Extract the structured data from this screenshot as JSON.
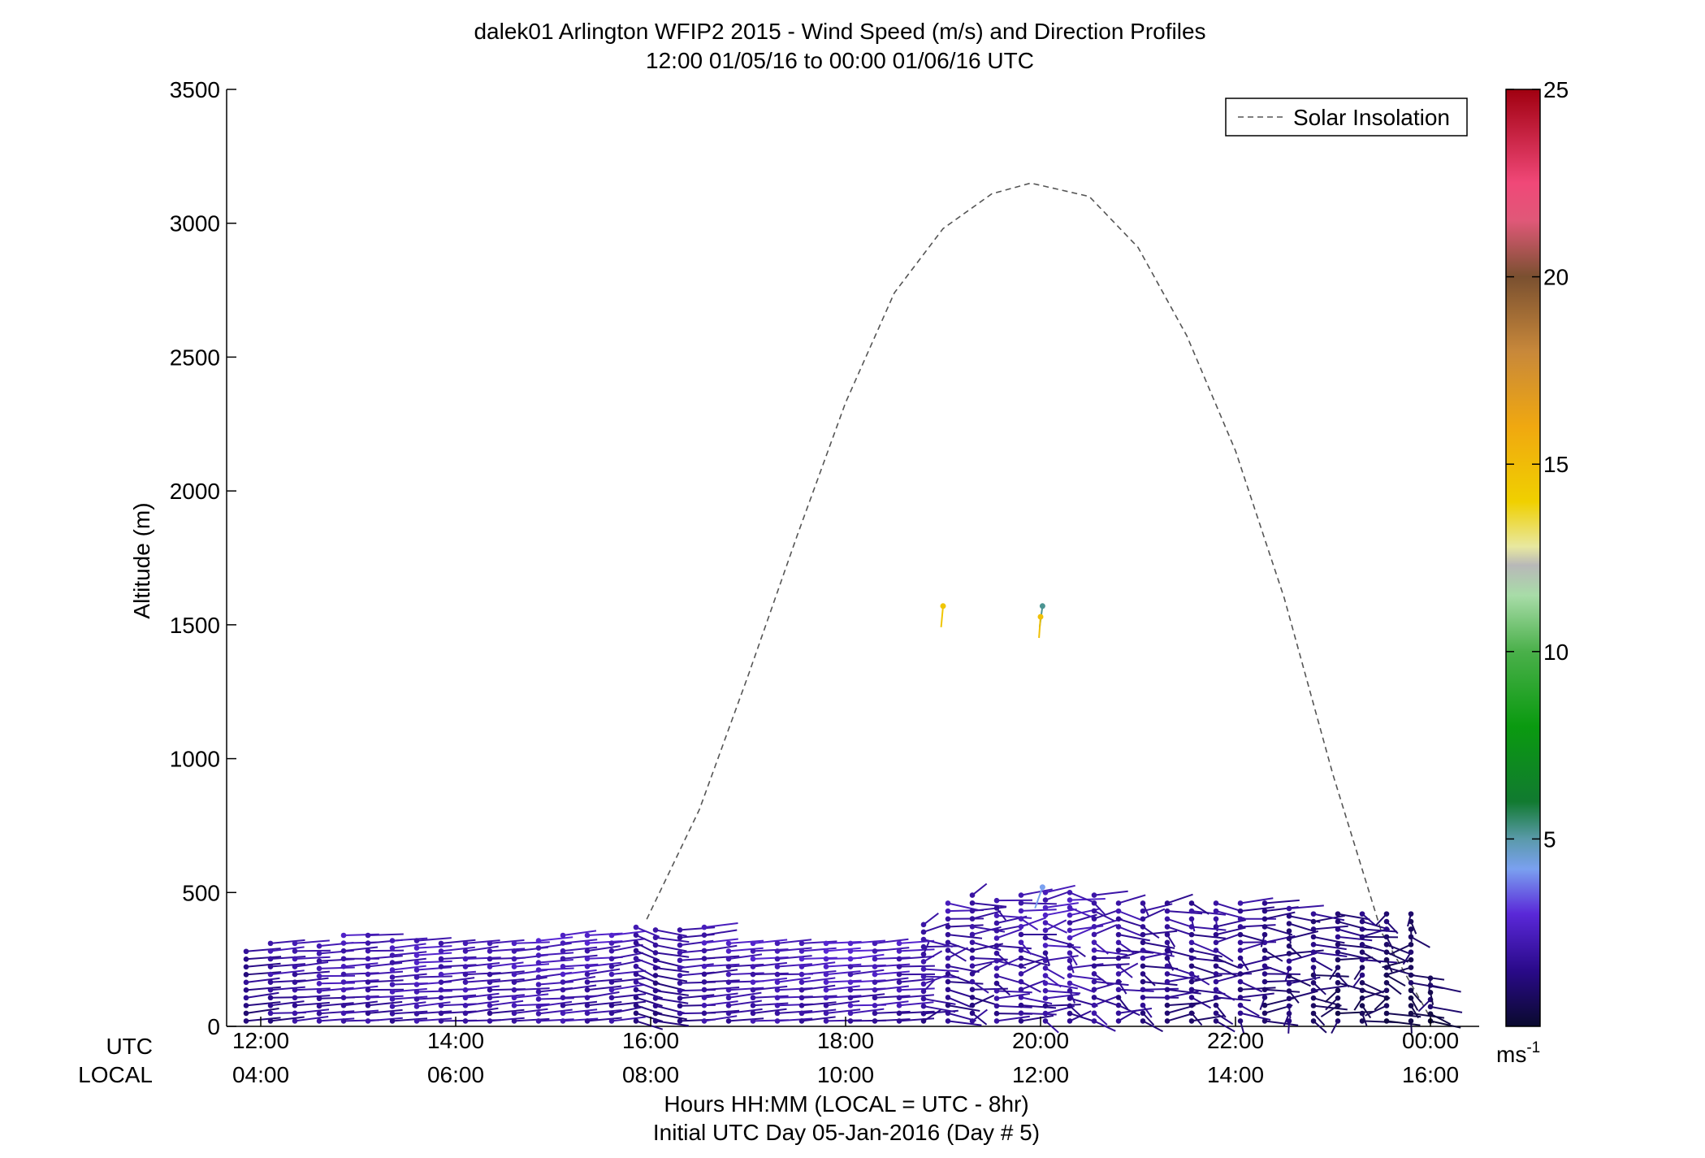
{
  "chart_data": {
    "type": "scatter",
    "title": "dalek01 Arlington WFIP2 2015 - Wind Speed (m/s) and Direction Profiles",
    "subtitle": "12:00 01/05/16 to 00:00 01/06/16  UTC",
    "ylabel": "Altitude (m)",
    "xlabel": "Hours HH:MM  (LOCAL = UTC - 8hr)",
    "xlabel2": "Initial UTC Day 05-Jan-2016 (Day # 5)",
    "row_labels": {
      "utc": "UTC",
      "local": "LOCAL"
    },
    "ylim": [
      0,
      3500
    ],
    "xlim_hours_utc": [
      11.65,
      24.5
    ],
    "yticks": [
      0,
      500,
      1000,
      1500,
      2000,
      2500,
      3000,
      3500
    ],
    "xticks_utc_hours": [
      12,
      14,
      16,
      18,
      20,
      22,
      24
    ],
    "xtick_labels_utc": [
      "12:00",
      "14:00",
      "16:00",
      "18:00",
      "20:00",
      "22:00",
      "00:00"
    ],
    "xtick_labels_local": [
      "04:00",
      "06:00",
      "08:00",
      "10:00",
      "12:00",
      "14:00",
      "16:00"
    ],
    "legend": {
      "entries": [
        "Solar Insolation"
      ],
      "placement": "top-right",
      "line_style": "dashed",
      "line_color": "#555555"
    },
    "grid": false,
    "colorbar": {
      "range": [
        0,
        25
      ],
      "ticks": [
        5,
        10,
        15,
        20,
        25
      ],
      "unit_label": "ms",
      "unit_exponent": "-1",
      "stops": [
        {
          "v": 0,
          "c": "#0a0a2e"
        },
        {
          "v": 1.5,
          "c": "#2a0a8a"
        },
        {
          "v": 3,
          "c": "#5a28d8"
        },
        {
          "v": 4.2,
          "c": "#7aa0f0"
        },
        {
          "v": 5,
          "c": "#5a9aaa"
        },
        {
          "v": 6,
          "c": "#117a30"
        },
        {
          "v": 8,
          "c": "#0a9a10"
        },
        {
          "v": 10,
          "c": "#4ab04a"
        },
        {
          "v": 11.5,
          "c": "#a8dca8"
        },
        {
          "v": 12.3,
          "c": "#b8b8b8"
        },
        {
          "v": 12.8,
          "c": "#e8e8a0"
        },
        {
          "v": 14,
          "c": "#f0d000"
        },
        {
          "v": 16,
          "c": "#f0a810"
        },
        {
          "v": 18,
          "c": "#c8883a"
        },
        {
          "v": 20,
          "c": "#7a5030"
        },
        {
          "v": 21.5,
          "c": "#e05878"
        },
        {
          "v": 22.5,
          "c": "#f04878"
        },
        {
          "v": 25,
          "c": "#a00010"
        }
      ]
    },
    "solar_insolation": {
      "description_units": "altitude-axis units",
      "x_hours_utc": [
        15.96,
        16.5,
        17.0,
        17.5,
        18.0,
        18.5,
        19.0,
        19.5,
        19.9,
        20.5,
        21.0,
        21.5,
        22.0,
        22.5,
        23.0,
        23.5,
        24.05
      ],
      "y": [
        400,
        810,
        1310,
        1830,
        2330,
        2740,
        2980,
        3110,
        3150,
        3100,
        2910,
        2580,
        2150,
        1600,
        940,
        350,
        0
      ]
    },
    "wind_profiles": {
      "note": "Wind barbs at each profile time (UTC hours) and range gate altitude (m); color = speed (m/s)",
      "profiles": [
        {
          "t": 11.85,
          "top": 280,
          "spd": 1.2,
          "dir": 255
        },
        {
          "t": 12.1,
          "top": 310,
          "spd": 1.6,
          "dir": 258
        },
        {
          "t": 12.35,
          "top": 310,
          "spd": 1.7,
          "dir": 258
        },
        {
          "t": 12.6,
          "top": 300,
          "spd": 1.8,
          "dir": 260
        },
        {
          "t": 12.85,
          "top": 340,
          "spd": 1.8,
          "dir": 262
        },
        {
          "t": 13.1,
          "top": 340,
          "spd": 1.9,
          "dir": 262
        },
        {
          "t": 13.35,
          "top": 320,
          "spd": 1.9,
          "dir": 260
        },
        {
          "t": 13.6,
          "top": 320,
          "spd": 1.9,
          "dir": 258
        },
        {
          "t": 13.85,
          "top": 310,
          "spd": 1.8,
          "dir": 258
        },
        {
          "t": 14.1,
          "top": 310,
          "spd": 1.9,
          "dir": 256
        },
        {
          "t": 14.35,
          "top": 310,
          "spd": 1.9,
          "dir": 258
        },
        {
          "t": 14.6,
          "top": 310,
          "spd": 1.9,
          "dir": 256
        },
        {
          "t": 14.85,
          "top": 320,
          "spd": 2.0,
          "dir": 256
        },
        {
          "t": 15.1,
          "top": 340,
          "spd": 2.0,
          "dir": 254
        },
        {
          "t": 15.35,
          "top": 340,
          "spd": 1.9,
          "dir": 254
        },
        {
          "t": 15.6,
          "top": 340,
          "spd": 1.8,
          "dir": 250
        },
        {
          "t": 15.85,
          "top": 370,
          "spd": 1.4,
          "dir": 320
        },
        {
          "t": 16.05,
          "top": 360,
          "spd": 1.3,
          "dir": 300
        },
        {
          "t": 16.3,
          "top": 360,
          "spd": 1.6,
          "dir": 258
        },
        {
          "t": 16.55,
          "top": 370,
          "spd": 1.8,
          "dir": 256
        },
        {
          "t": 16.8,
          "top": 310,
          "spd": 1.9,
          "dir": 256
        },
        {
          "t": 17.05,
          "top": 310,
          "spd": 2.0,
          "dir": 256
        },
        {
          "t": 17.3,
          "top": 310,
          "spd": 2.0,
          "dir": 258
        },
        {
          "t": 17.55,
          "top": 310,
          "spd": 2.0,
          "dir": 258
        },
        {
          "t": 17.8,
          "top": 310,
          "spd": 2.1,
          "dir": 258
        },
        {
          "t": 18.05,
          "top": 310,
          "spd": 2.1,
          "dir": 258
        },
        {
          "t": 18.3,
          "top": 310,
          "spd": 2.0,
          "dir": 258
        },
        {
          "t": 18.55,
          "top": 310,
          "spd": 1.9,
          "dir": 260
        },
        {
          "t": 18.8,
          "top": 380,
          "spd": 1.6,
          "dir": 255
        },
        {
          "t": 19.05,
          "top": 460,
          "spd": 1.5,
          "dir": 270
        },
        {
          "t": 19.3,
          "top": 490,
          "spd": 1.6,
          "dir": 270
        },
        {
          "t": 19.55,
          "top": 470,
          "spd": 1.6,
          "dir": 280
        },
        {
          "t": 19.8,
          "top": 490,
          "spd": 1.7,
          "dir": 280
        },
        {
          "t": 20.05,
          "top": 500,
          "spd": 1.8,
          "dir": 285
        },
        {
          "t": 20.3,
          "top": 500,
          "spd": 1.8,
          "dir": 285
        },
        {
          "t": 20.55,
          "top": 490,
          "spd": 1.7,
          "dir": 280
        },
        {
          "t": 20.8,
          "top": 460,
          "spd": 1.5,
          "dir": 280
        },
        {
          "t": 21.05,
          "top": 460,
          "spd": 1.4,
          "dir": 285
        },
        {
          "t": 21.3,
          "top": 460,
          "spd": 1.3,
          "dir": 285
        },
        {
          "t": 21.55,
          "top": 460,
          "spd": 1.3,
          "dir": 290
        },
        {
          "t": 21.8,
          "top": 460,
          "spd": 1.3,
          "dir": 290
        },
        {
          "t": 22.05,
          "top": 460,
          "spd": 1.2,
          "dir": 295
        },
        {
          "t": 22.3,
          "top": 460,
          "spd": 1.1,
          "dir": 300
        },
        {
          "t": 22.55,
          "top": 440,
          "spd": 1.0,
          "dir": 300
        },
        {
          "t": 22.8,
          "top": 420,
          "spd": 0.9,
          "dir": 310
        },
        {
          "t": 23.05,
          "top": 420,
          "spd": 0.8,
          "dir": 320
        },
        {
          "t": 23.3,
          "top": 420,
          "spd": 0.7,
          "dir": 330
        },
        {
          "t": 23.55,
          "top": 420,
          "spd": 0.6,
          "dir": 340
        },
        {
          "t": 23.8,
          "top": 420,
          "spd": 0.5,
          "dir": 345
        },
        {
          "t": 24.0,
          "top": 180,
          "spd": 0.5,
          "dir": 350
        }
      ],
      "isolated_points": [
        {
          "t": 19.0,
          "alt": 1570,
          "spd": 14.5,
          "dir": 195
        },
        {
          "t": 20.02,
          "alt": 1570,
          "spd": 5.2,
          "dir": 185
        },
        {
          "t": 20.0,
          "alt": 1530,
          "spd": 14.8,
          "dir": 200
        },
        {
          "t": 20.02,
          "alt": 520,
          "spd": 4.2,
          "dir": 60
        }
      ]
    }
  }
}
